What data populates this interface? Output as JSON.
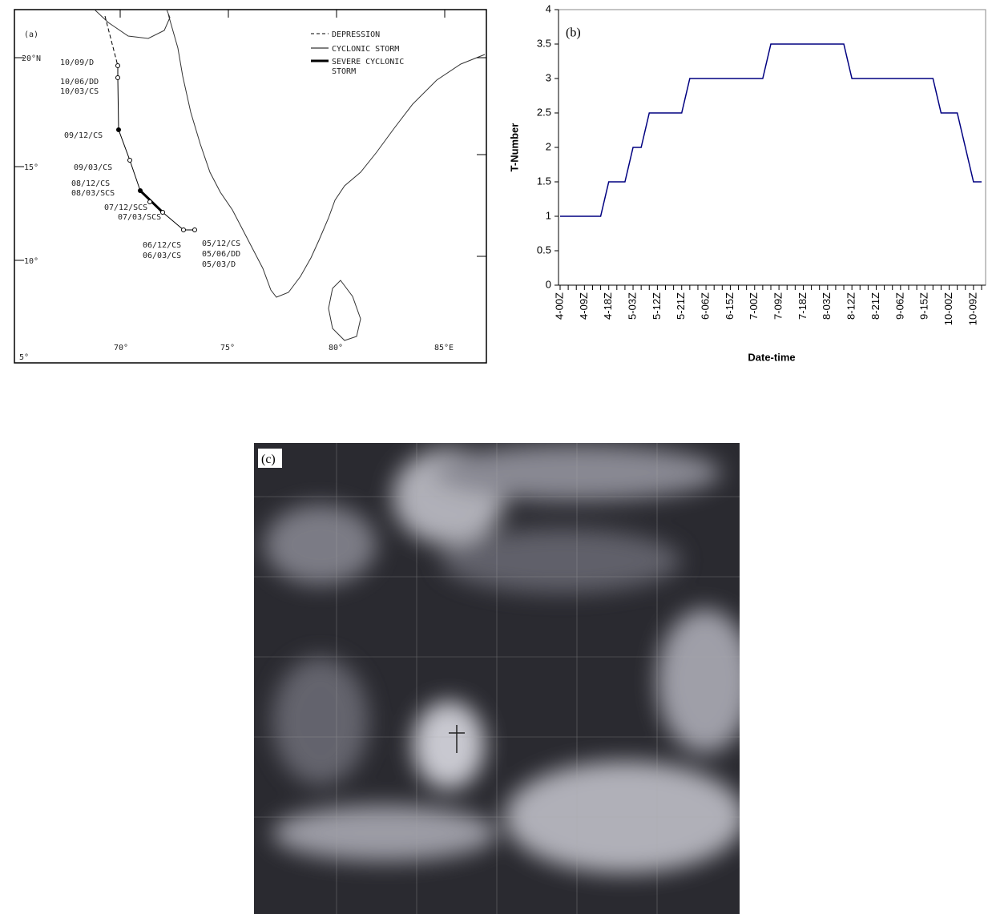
{
  "panels": {
    "a": "(a)",
    "b": "(b)",
    "c": "(c)"
  },
  "map": {
    "legend": [
      "DEPRESSION",
      "CYCLONIC STORM",
      "SEVERE CYCLONIC",
      "STORM"
    ],
    "lat_labels": [
      "20°N",
      "15°",
      "10°",
      "5°"
    ],
    "lon_labels": [
      "70°",
      "75°",
      "80°",
      "85°E"
    ],
    "track_labels": [
      "10/09/D",
      "10/06/DD",
      "10/03/CS",
      "09/12/CS",
      "09/03/CS",
      "08/12/CS",
      "08/03/SCS",
      "07/12/SCS",
      "07/03/SCS",
      "06/12/CS",
      "06/03/CS",
      "05/12/CS",
      "05/06/DD",
      "05/03/D"
    ]
  },
  "chart_data": {
    "type": "line",
    "x_label": "Date-time",
    "y_label": "T-Number",
    "categories": [
      "4-00Z",
      null,
      null,
      "4-09Z",
      null,
      null,
      "4-18Z",
      null,
      null,
      "5-03Z",
      null,
      null,
      "5-12Z",
      null,
      null,
      "5-21Z",
      null,
      null,
      "6-06Z",
      null,
      null,
      "6-15Z",
      null,
      null,
      "7-00Z",
      null,
      null,
      "7-09Z",
      null,
      null,
      "7-18Z",
      null,
      null,
      "8-03Z",
      null,
      null,
      "8-12Z",
      null,
      null,
      "8-21Z",
      null,
      null,
      "9-06Z",
      null,
      null,
      "9-15Z",
      null,
      null,
      "10-00Z",
      null,
      null,
      "10-09Z",
      null
    ],
    "values": [
      1,
      1,
      1,
      1,
      1,
      1,
      1.5,
      1.5,
      1.5,
      2,
      2,
      2.5,
      2.5,
      2.5,
      2.5,
      2.5,
      3,
      3,
      3,
      3,
      3,
      3,
      3,
      3,
      3,
      3,
      3.5,
      3.5,
      3.5,
      3.5,
      3.5,
      3.5,
      3.5,
      3.5,
      3.5,
      3.5,
      3,
      3,
      3,
      3,
      3,
      3,
      3,
      3,
      3,
      3,
      3,
      2.5,
      2.5,
      2.5,
      2,
      1.5,
      1.5
    ],
    "color": "#000080",
    "ylim": [
      0,
      4
    ],
    "yticks": [
      0,
      0.5,
      1,
      1.5,
      2,
      2.5,
      3,
      3.5,
      4
    ]
  }
}
